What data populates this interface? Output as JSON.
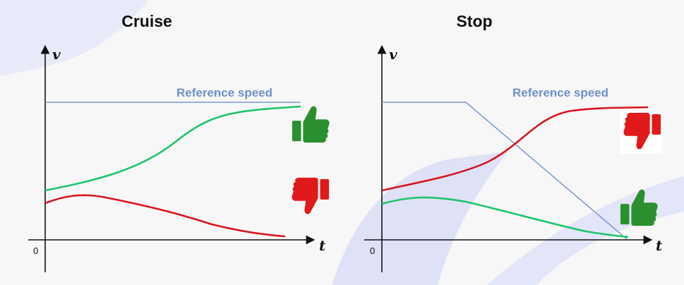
{
  "colors": {
    "background": "#f7f7f7",
    "reference": "#7b98d2",
    "good": "#1ec46a",
    "bad": "#d8141b",
    "thumb_up": "#2a8f2e",
    "thumb_down": "#e01a1a",
    "decor": "#dfe1f7"
  },
  "panels": [
    {
      "title": "Cruise",
      "axis_y": "v",
      "axis_x": "t",
      "origin": "0",
      "reference_label": "Reference speed",
      "reference_curve": "constant",
      "good_curve_icon": "thumbs-up-icon",
      "bad_curve_icon": "thumbs-down-icon"
    },
    {
      "title": "Stop",
      "axis_y": "v",
      "axis_x": "t",
      "origin": "0",
      "reference_label": "Reference speed",
      "reference_curve": "decreasing-to-zero",
      "good_curve_icon": "thumbs-up-icon",
      "bad_curve_icon": "thumbs-down-icon"
    }
  ]
}
